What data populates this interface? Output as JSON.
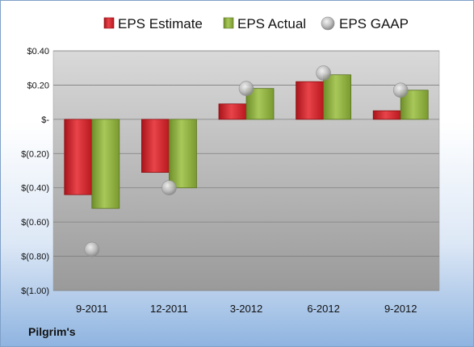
{
  "chart_data": {
    "type": "bar",
    "categories": [
      "9-2011",
      "12-2011",
      "3-2012",
      "6-2012",
      "9-2012"
    ],
    "series": [
      {
        "name": "EPS Estimate",
        "values": [
          -0.44,
          -0.31,
          0.09,
          0.22,
          0.05
        ],
        "color": "#d42027"
      },
      {
        "name": "EPS Actual",
        "values": [
          -0.52,
          -0.4,
          0.18,
          0.26,
          0.17
        ],
        "color": "#8fb03c"
      },
      {
        "name": "EPS GAAP",
        "values": [
          -0.76,
          -0.4,
          0.18,
          0.27,
          0.17
        ],
        "color": "#c8c8c8",
        "marker": "circle"
      }
    ],
    "yticks": [
      {
        "v": 0.4,
        "label": "$0.40"
      },
      {
        "v": 0.2,
        "label": "$0.20"
      },
      {
        "v": 0.0,
        "label": "$-"
      },
      {
        "v": -0.2,
        "label": "$(0.20)"
      },
      {
        "v": -0.4,
        "label": "$(0.40)"
      },
      {
        "v": -0.6,
        "label": "$(0.60)"
      },
      {
        "v": -0.8,
        "label": "$(0.80)"
      },
      {
        "v": -1.0,
        "label": "$(1.00)"
      }
    ],
    "ylim": [
      -1.0,
      0.4
    ],
    "grid": true,
    "legend": "top"
  },
  "footer": "Pilgrim's"
}
